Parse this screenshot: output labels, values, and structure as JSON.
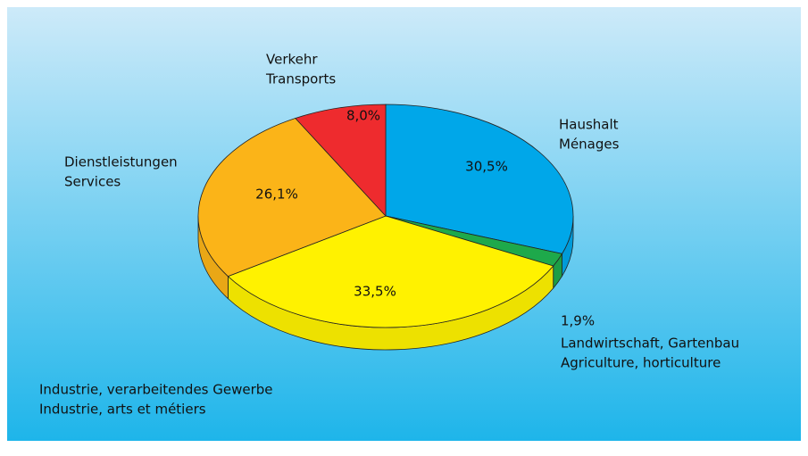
{
  "chart_data": {
    "type": "pie",
    "categories": [
      [
        "Haushalt",
        "Ménages"
      ],
      [
        "Landwirtschaft, Gartenbau",
        "Agriculture, horticulture"
      ],
      [
        "Industrie, verarbeitendes Gewerbe",
        "Industrie, arts et métiers"
      ],
      [
        "Dienstleistungen",
        "Services"
      ],
      [
        "Verkehr",
        "Transports"
      ]
    ],
    "values": [
      30.5,
      1.9,
      33.5,
      26.1,
      8.0
    ],
    "value_labels": [
      "30,5%",
      "1,9%",
      "33,5%",
      "26,1%",
      "8,0%"
    ],
    "colors": [
      "#00a7e9",
      "#1ea94b",
      "#fff200",
      "#fbb418",
      "#ee2b2e"
    ]
  }
}
